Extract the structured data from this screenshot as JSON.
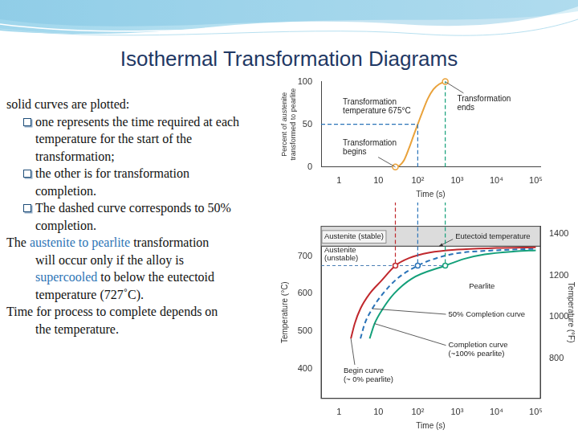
{
  "slide": {
    "title": "Isothermal Transformation Diagrams",
    "text": [
      {
        "bullet": false,
        "lines": [
          "solid curves are plotted:"
        ]
      },
      {
        "bullet": true,
        "lines": [
          "one represents the time required at each",
          "temperature for the start of the",
          "transformation;"
        ]
      },
      {
        "bullet": true,
        "lines": [
          "the other is for transformation",
          "completion."
        ]
      },
      {
        "bullet": true,
        "lines": [
          "The dashed curve corresponds to 50%",
          "completion."
        ]
      },
      {
        "bullet": false,
        "lines": [
          "The austenite to pearlite transformation",
          "will occur only if the alloy is",
          "supercooled to below the eutectoid",
          "temperature (727˚C)."
        ],
        "highlights": [
          "austenite to pearlite",
          "supercooled"
        ],
        "highlight_color": "#2e75b6"
      },
      {
        "bullet": false,
        "lines": [
          "Time for process to complete depends on",
          "the temperature."
        ]
      }
    ]
  },
  "chart_data": [
    {
      "type": "line",
      "x_label": "Time (s)",
      "y_label": "Percent of austenite transformed to pearlite",
      "log": "x",
      "grid": false,
      "xlim": [
        0.35,
        130000
      ],
      "xticks": [
        1,
        10,
        {
          "value": 100,
          "label": "10²"
        },
        {
          "value": 1000,
          "label": "10³"
        },
        {
          "value": 10000,
          "label": "10⁴"
        },
        {
          "value": 100000,
          "label": "10⁵"
        }
      ],
      "ylim": [
        0,
        100
      ],
      "yticks": [
        0,
        50,
        100
      ],
      "series": [
        {
          "color": "#e9a23b",
          "line_style": "solid",
          "marker": "endpoints",
          "x": [
            27,
            35,
            45,
            60,
            80,
            100,
            130,
            180,
            250,
            350,
            500
          ],
          "values": [
            0,
            2,
            8,
            22,
            38,
            50,
            64,
            80,
            91,
            97,
            100
          ]
        }
      ],
      "annotations": [
        {
          "text": [
            "Transformation",
            "temperature 675°C"
          ]
        },
        {
          "text": [
            "Transformation",
            "begins"
          ],
          "points_to": [
            27,
            0
          ]
        },
        {
          "text": [
            "Transformation",
            "ends"
          ],
          "points_to": [
            500,
            100
          ]
        }
      ]
    },
    {
      "type": "line",
      "x_label": "Time (s)",
      "y_label": "Temperature (°C)",
      "y2_label": "Temperature (°F)",
      "log": "x",
      "grid": false,
      "xlim": [
        0.35,
        130000
      ],
      "xticks": [
        1,
        10,
        {
          "value": 100,
          "label": "10²"
        },
        {
          "value": 1000,
          "label": "10³"
        },
        {
          "value": 10000,
          "label": "10⁴"
        },
        {
          "value": 100000,
          "label": "10⁵"
        }
      ],
      "ylim": [
        320,
        780
      ],
      "yticks": [
        400,
        500,
        600,
        700
      ],
      "y2lim": [
        608,
        1436
      ],
      "y2ticks": [
        800,
        1000,
        1200,
        1400
      ],
      "eutectoid": 727,
      "isotherm": 675,
      "isotherm_times": [
        27,
        100,
        500
      ],
      "series": [
        {
          "color": "#c0282d",
          "line_style": "solid",
          "marker": "none",
          "x": [
            2.0,
            2.5,
            3.5,
            6,
            12,
            27,
            60,
            200,
            1000,
            10000,
            100000
          ],
          "values": [
            480,
            520,
            560,
            600,
            635,
            675,
            695,
            710,
            718,
            722,
            724
          ]
        },
        {
          "color": "#2a73b8",
          "line_style": "dashed",
          "marker": "none",
          "x": [
            3.5,
            4.5,
            7,
            13,
            30,
            100,
            300,
            1000,
            10000,
            100000
          ],
          "values": [
            480,
            520,
            560,
            600,
            640,
            675,
            695,
            708,
            716,
            720
          ]
        },
        {
          "color": "#14a07a",
          "line_style": "solid",
          "marker": "none",
          "x": [
            6,
            8,
            13,
            25,
            70,
            500,
            1500,
            5000,
            30000,
            100000
          ],
          "values": [
            480,
            520,
            560,
            600,
            640,
            675,
            693,
            705,
            713,
            716
          ]
        }
      ],
      "annotations": [
        {
          "text": [
            "Austenite (stable)"
          ]
        },
        {
          "text": [
            "Eutectoid temperature"
          ],
          "points_to": [
            350,
            727
          ]
        },
        {
          "text": [
            "Austenite",
            "(unstable)"
          ]
        },
        {
          "text": [
            "Pearlite"
          ]
        },
        {
          "text": [
            "50% Completion curve"
          ],
          "points_to": [
            7,
            560
          ]
        },
        {
          "text": [
            "Completion curve",
            "(~100% pearlite)"
          ],
          "points_to": [
            8,
            520
          ]
        },
        {
          "text": [
            "Begin curve",
            "(~ 0% pearlite)"
          ],
          "points_to": [
            2.0,
            480
          ]
        }
      ]
    }
  ]
}
